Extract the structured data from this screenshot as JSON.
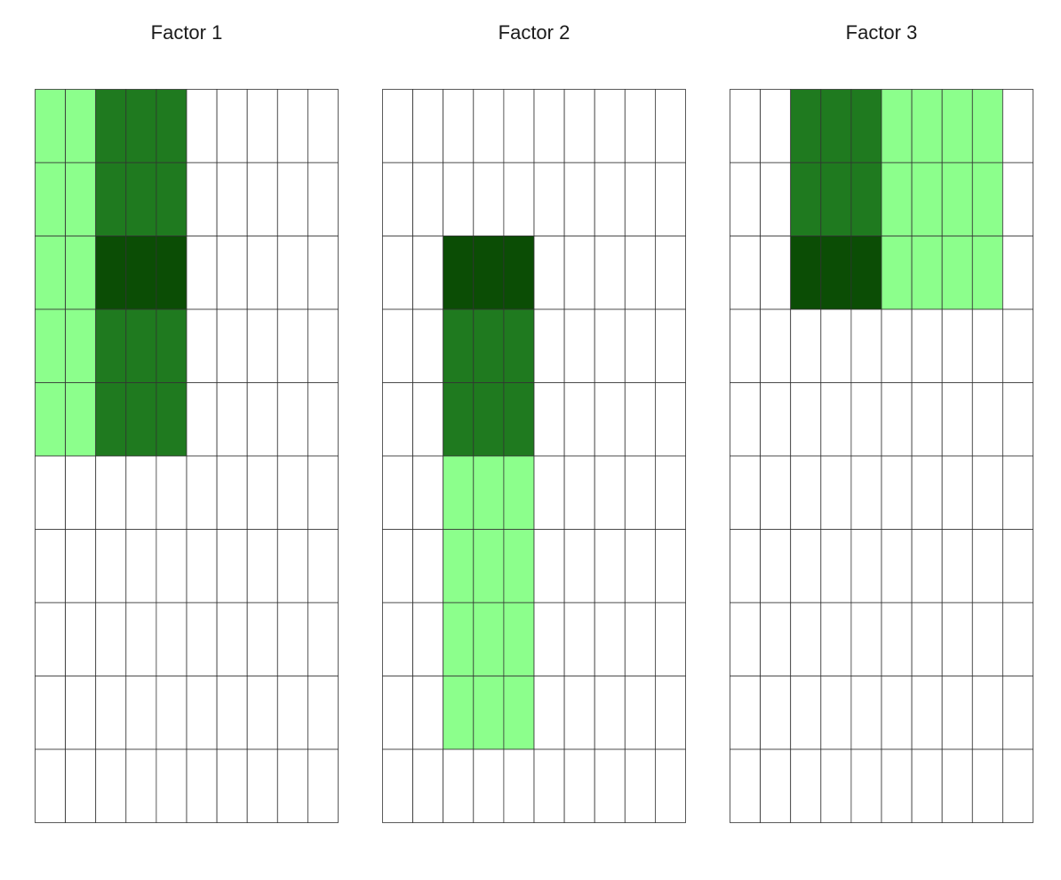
{
  "chart_data": [
    {
      "type": "heatmap",
      "title": "Factor 1",
      "rows": 10,
      "cols": 10,
      "levels": {
        "0": "#ffffff",
        "1": "#8cff8c",
        "2": "#1f7a1f",
        "3": "#0b4d05"
      },
      "matrix": [
        [
          1,
          1,
          2,
          2,
          2,
          0,
          0,
          0,
          0,
          0
        ],
        [
          1,
          1,
          2,
          2,
          2,
          0,
          0,
          0,
          0,
          0
        ],
        [
          1,
          1,
          3,
          3,
          3,
          0,
          0,
          0,
          0,
          0
        ],
        [
          1,
          1,
          2,
          2,
          2,
          0,
          0,
          0,
          0,
          0
        ],
        [
          1,
          1,
          2,
          2,
          2,
          0,
          0,
          0,
          0,
          0
        ],
        [
          0,
          0,
          0,
          0,
          0,
          0,
          0,
          0,
          0,
          0
        ],
        [
          0,
          0,
          0,
          0,
          0,
          0,
          0,
          0,
          0,
          0
        ],
        [
          0,
          0,
          0,
          0,
          0,
          0,
          0,
          0,
          0,
          0
        ],
        [
          0,
          0,
          0,
          0,
          0,
          0,
          0,
          0,
          0,
          0
        ],
        [
          0,
          0,
          0,
          0,
          0,
          0,
          0,
          0,
          0,
          0
        ]
      ]
    },
    {
      "type": "heatmap",
      "title": "Factor 2",
      "rows": 10,
      "cols": 10,
      "levels": {
        "0": "#ffffff",
        "1": "#8cff8c",
        "2": "#1f7a1f",
        "3": "#0b4d05"
      },
      "matrix": [
        [
          0,
          0,
          0,
          0,
          0,
          0,
          0,
          0,
          0,
          0
        ],
        [
          0,
          0,
          0,
          0,
          0,
          0,
          0,
          0,
          0,
          0
        ],
        [
          0,
          0,
          3,
          3,
          3,
          0,
          0,
          0,
          0,
          0
        ],
        [
          0,
          0,
          2,
          2,
          2,
          0,
          0,
          0,
          0,
          0
        ],
        [
          0,
          0,
          2,
          2,
          2,
          0,
          0,
          0,
          0,
          0
        ],
        [
          0,
          0,
          1,
          1,
          1,
          0,
          0,
          0,
          0,
          0
        ],
        [
          0,
          0,
          1,
          1,
          1,
          0,
          0,
          0,
          0,
          0
        ],
        [
          0,
          0,
          1,
          1,
          1,
          0,
          0,
          0,
          0,
          0
        ],
        [
          0,
          0,
          1,
          1,
          1,
          0,
          0,
          0,
          0,
          0
        ],
        [
          0,
          0,
          0,
          0,
          0,
          0,
          0,
          0,
          0,
          0
        ]
      ]
    },
    {
      "type": "heatmap",
      "title": "Factor 3",
      "rows": 10,
      "cols": 10,
      "levels": {
        "0": "#ffffff",
        "1": "#8cff8c",
        "2": "#1f7a1f",
        "3": "#0b4d05"
      },
      "matrix": [
        [
          0,
          0,
          2,
          2,
          2,
          1,
          1,
          1,
          1,
          0
        ],
        [
          0,
          0,
          2,
          2,
          2,
          1,
          1,
          1,
          1,
          0
        ],
        [
          0,
          0,
          3,
          3,
          3,
          1,
          1,
          1,
          1,
          0
        ],
        [
          0,
          0,
          0,
          0,
          0,
          0,
          0,
          0,
          0,
          0
        ],
        [
          0,
          0,
          0,
          0,
          0,
          0,
          0,
          0,
          0,
          0
        ],
        [
          0,
          0,
          0,
          0,
          0,
          0,
          0,
          0,
          0,
          0
        ],
        [
          0,
          0,
          0,
          0,
          0,
          0,
          0,
          0,
          0,
          0
        ],
        [
          0,
          0,
          0,
          0,
          0,
          0,
          0,
          0,
          0,
          0
        ],
        [
          0,
          0,
          0,
          0,
          0,
          0,
          0,
          0,
          0,
          0
        ],
        [
          0,
          0,
          0,
          0,
          0,
          0,
          0,
          0,
          0,
          0
        ]
      ]
    }
  ]
}
